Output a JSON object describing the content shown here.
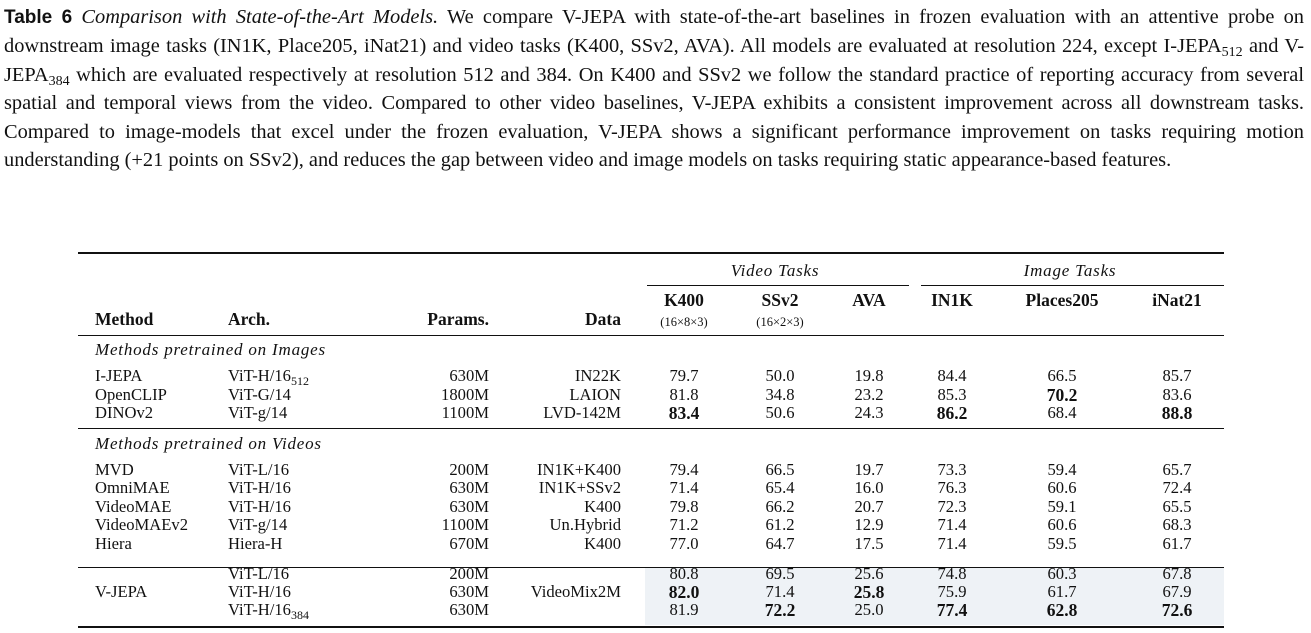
{
  "caption": {
    "label": "Table 6",
    "title": "Comparison with State-of-the-Art Models.",
    "seg1": " We compare V-JEPA with state-of-the-art baselines in frozen evaluation with an attentive probe on downstream image tasks (IN1K, Place205, iNat21) and video tasks (K400, SSv2, AVA). All models are evaluated at resolution 224, except I-JEPA",
    "sub1": "512",
    "seg2": " and V-JEPA",
    "sub2": "384",
    "seg3": " which are evaluated respectively at resolution 512 and 384. On K400 and SSv2 we follow the standard practice of reporting accuracy from several spatial and temporal views from the video. Compared to other video baselines, V-JEPA exhibits a consistent improvement across all downstream tasks. Compared to image-models that excel under the frozen evaluation, V-JEPA shows a significant performance improvement on tasks requiring motion understanding (+21 points on SSv2), and reduces the gap between video and image models on tasks requiring static appearance-based features."
  },
  "table": {
    "group_video": "Video Tasks",
    "group_image": "Image Tasks",
    "headers": {
      "method": "Method",
      "arch": "Arch.",
      "params": "Params.",
      "data": "Data",
      "k400": "K400",
      "k400_views": "(16×8×3)",
      "ssv2": "SSv2",
      "ssv2_views": "(16×2×3)",
      "ava": "AVA",
      "in1k": "IN1K",
      "places": "Places205",
      "inat": "iNat21"
    },
    "section_images": "Methods pretrained on Images",
    "section_videos": "Methods pretrained on Videos",
    "image_rows": [
      {
        "method": "I-JEPA",
        "arch": "ViT-H/16",
        "arch_sub": "512",
        "params": "630M",
        "data": "IN22K",
        "k400": "79.7",
        "ssv2": "50.0",
        "ava": "19.8",
        "in1k": "84.4",
        "places": "66.5",
        "inat": "85.7"
      },
      {
        "method": "OpenCLIP",
        "arch": "ViT-G/14",
        "arch_sub": "",
        "params": "1800M",
        "data": "LAION",
        "k400": "81.8",
        "ssv2": "34.8",
        "ava": "23.2",
        "in1k": "85.3",
        "places": "70.2",
        "inat": "83.6"
      },
      {
        "method": "DINOv2",
        "arch": "ViT-g/14",
        "arch_sub": "",
        "params": "1100M",
        "data": "LVD-142M",
        "k400": "83.4",
        "ssv2": "50.6",
        "ava": "24.3",
        "in1k": "86.2",
        "places": "68.4",
        "inat": "88.8"
      }
    ],
    "video_rows": [
      {
        "method": "MVD",
        "arch": "ViT-L/16",
        "params": "200M",
        "data": "IN1K+K400",
        "k400": "79.4",
        "ssv2": "66.5",
        "ava": "19.7",
        "in1k": "73.3",
        "places": "59.4",
        "inat": "65.7"
      },
      {
        "method": "OmniMAE",
        "arch": "ViT-H/16",
        "params": "630M",
        "data": "IN1K+SSv2",
        "k400": "71.4",
        "ssv2": "65.4",
        "ava": "16.0",
        "in1k": "76.3",
        "places": "60.6",
        "inat": "72.4"
      },
      {
        "method": "VideoMAE",
        "arch": "ViT-H/16",
        "params": "630M",
        "data": "K400",
        "k400": "79.8",
        "ssv2": "66.2",
        "ava": "20.7",
        "in1k": "72.3",
        "places": "59.1",
        "inat": "65.5"
      },
      {
        "method": "VideoMAEv2",
        "arch": "ViT-g/14",
        "params": "1100M",
        "data": "Un.Hybrid",
        "k400": "71.2",
        "ssv2": "61.2",
        "ava": "12.9",
        "in1k": "71.4",
        "places": "60.6",
        "inat": "68.3"
      },
      {
        "method": "Hiera",
        "arch": "Hiera-H",
        "params": "670M",
        "data": "K400",
        "k400": "77.0",
        "ssv2": "64.7",
        "ava": "17.5",
        "in1k": "71.4",
        "places": "59.5",
        "inat": "61.7"
      }
    ],
    "vjepa": {
      "method": "V-JEPA",
      "data": "VideoMix2M",
      "rows": [
        {
          "arch": "ViT-L/16",
          "arch_sub": "",
          "params": "200M",
          "k400": "80.8",
          "ssv2": "69.5",
          "ava": "25.6",
          "in1k": "74.8",
          "places": "60.3",
          "inat": "67.8"
        },
        {
          "arch": "ViT-H/16",
          "arch_sub": "",
          "params": "630M",
          "k400": "82.0",
          "ssv2": "71.4",
          "ava": "25.8",
          "in1k": "75.9",
          "places": "61.7",
          "inat": "67.9"
        },
        {
          "arch": "ViT-H/16",
          "arch_sub": "384",
          "params": "630M",
          "k400": "81.9",
          "ssv2": "72.2",
          "ava": "25.0",
          "in1k": "77.4",
          "places": "62.8",
          "inat": "72.6"
        }
      ]
    }
  }
}
